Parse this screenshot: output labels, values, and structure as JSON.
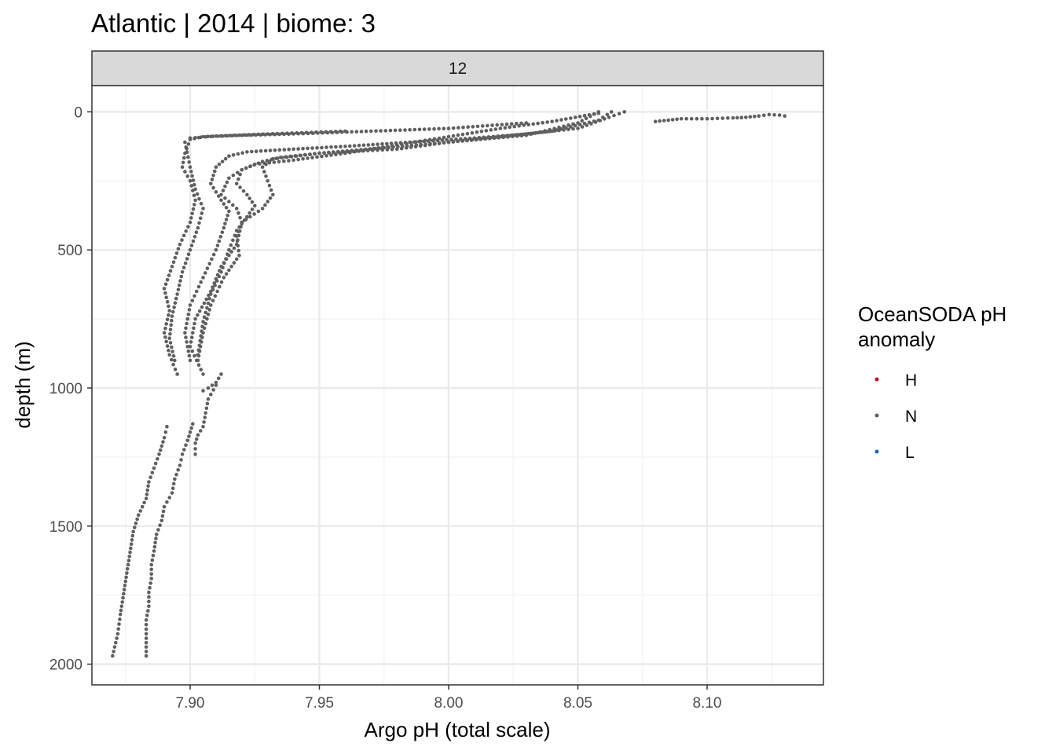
{
  "chart_data": {
    "type": "scatter",
    "title": "Atlantic | 2014 | biome: 3",
    "facet_label": "12",
    "xlabel": "Argo pH (total scale)",
    "ylabel": "depth (m)",
    "xlim": [
      7.862,
      8.145
    ],
    "ylim": [
      2075,
      -95
    ],
    "y_reversed": true,
    "x_ticks": [
      7.9,
      7.95,
      8.0,
      8.05,
      8.1
    ],
    "x_tick_labels": [
      "7.90",
      "7.95",
      "8.00",
      "8.05",
      "8.10"
    ],
    "y_ticks": [
      0,
      500,
      1000,
      1500,
      2000
    ],
    "y_tick_labels": [
      "0",
      "500",
      "1000",
      "1500",
      "2000"
    ],
    "grid": true,
    "legend": {
      "title_lines": [
        "OceanSODA pH",
        "anomaly"
      ],
      "placement": "right",
      "items": [
        {
          "label": "H",
          "color": "#b2182b"
        },
        {
          "label": "N",
          "color": "#5f5f5f"
        },
        {
          "label": "L",
          "color": "#2166ac"
        }
      ]
    },
    "series": [
      {
        "name": "N",
        "color": "#5f5f5f",
        "profiles": [
          {
            "ph": [
              8.068,
              8.062,
              8.05,
              8.03,
              8.01,
              7.985,
              7.96,
              7.94,
              7.922,
              7.915,
              7.91,
              7.908,
              7.912,
              7.915,
              7.913,
              7.91,
              7.905,
              7.9,
              7.898,
              7.9
            ],
            "depth": [
              0,
              20,
              60,
              80,
              95,
              110,
              125,
              135,
              145,
              160,
              200,
              260,
              320,
              360,
              420,
              500,
              600,
              700,
              800,
              900
            ]
          },
          {
            "ph": [
              8.063,
              8.058,
              8.04,
              8.02,
              8.0,
              7.98,
              7.95,
              7.935,
              7.928,
              7.92,
              7.918,
              7.922,
              7.925,
              7.922,
              7.918,
              7.915,
              7.912,
              7.908,
              7.905,
              7.903
            ],
            "depth": [
              0,
              30,
              70,
              90,
              110,
              135,
              150,
              165,
              180,
              210,
              260,
              300,
              340,
              380,
              430,
              500,
              580,
              660,
              760,
              880
            ]
          },
          {
            "ph": [
              8.058,
              8.05,
              8.03,
              8.0,
              7.975,
              7.95,
              7.932,
              7.928,
              7.93,
              7.932,
              7.928,
              7.92,
              7.918,
              7.919,
              7.913,
              7.908,
              7.905,
              7.903
            ],
            "depth": [
              0,
              40,
              85,
              110,
              130,
              150,
              170,
              200,
              250,
              300,
              350,
              400,
              450,
              520,
              600,
              700,
              800,
              900
            ]
          },
          {
            "ph": [
              8.058,
              8.04,
              8.02,
              8.0,
              7.98,
              7.96,
              7.94,
              7.925,
              7.92,
              7.915,
              7.912,
              7.918,
              7.92,
              7.918,
              7.912,
              7.908,
              7.902,
              7.9,
              7.905
            ],
            "depth": [
              5,
              35,
              60,
              90,
              120,
              150,
              175,
              190,
              210,
              240,
              300,
              350,
              400,
              480,
              560,
              650,
              750,
              850,
              950
            ]
          },
          {
            "ph": [
              8.03,
              8.0,
              7.97,
              7.94,
              7.92,
              7.905,
              7.9,
              7.898,
              7.897,
              7.9,
              7.902,
              7.9,
              7.896,
              7.893,
              7.89,
              7.892,
              7.89,
              7.892,
              7.895
            ],
            "depth": [
              40,
              60,
              70,
              80,
              85,
              90,
              100,
              150,
              200,
              250,
              320,
              400,
              480,
              560,
              640,
              720,
              800,
              880,
              950
            ]
          },
          {
            "ph": [
              7.96,
              7.93,
              7.91,
              7.9,
              7.898,
              7.9,
              7.902,
              7.905,
              7.903,
              7.9,
              7.897,
              7.895,
              7.893,
              7.892,
              7.894
            ],
            "depth": [
              70,
              80,
              88,
              95,
              110,
              200,
              280,
              350,
              420,
              500,
              580,
              660,
              740,
              820,
              900
            ]
          },
          {
            "ph": [
              7.912,
              7.91,
              7.907,
              7.905
            ],
            "depth": [
              950,
              980,
              1000,
              1010
            ]
          },
          {
            "ph": [
              7.91,
              7.907,
              7.906,
              7.905,
              7.903,
              7.902,
              7.902
            ],
            "depth": [
              990,
              1040,
              1090,
              1140,
              1170,
              1200,
              1240
            ]
          },
          {
            "ph": [
              7.901,
              7.899,
              7.897,
              7.896,
              7.894,
              7.893,
              7.89,
              7.889,
              7.887,
              7.886,
              7.885,
              7.885,
              7.884,
              7.884,
              7.883,
              7.883,
              7.883
            ],
            "depth": [
              1130,
              1190,
              1240,
              1280,
              1330,
              1380,
              1430,
              1480,
              1530,
              1590,
              1640,
              1690,
              1740,
              1790,
              1840,
              1890,
              1970
            ]
          },
          {
            "ph": [
              7.891,
              7.89,
              7.888,
              7.886,
              7.884,
              7.883,
              7.88,
              7.878,
              7.877,
              7.876,
              7.875,
              7.874,
              7.873,
              7.872,
              7.87
            ],
            "depth": [
              1140,
              1180,
              1240,
              1290,
              1340,
              1400,
              1460,
              1520,
              1580,
              1640,
              1700,
              1760,
              1820,
              1890,
              1970
            ]
          },
          {
            "ph": [
              8.08,
              8.085,
              8.09,
              8.1,
              8.11,
              8.115,
              8.12,
              8.124,
              8.128,
              8.13
            ],
            "depth": [
              35,
              30,
              25,
              25,
              22,
              20,
              15,
              10,
              12,
              15
            ]
          }
        ]
      }
    ]
  }
}
